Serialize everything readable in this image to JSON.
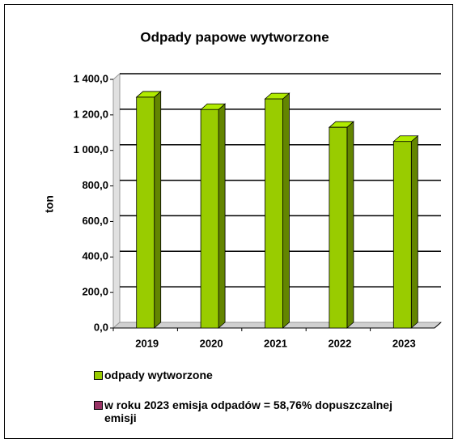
{
  "chart_data": {
    "type": "bar3d",
    "title": "Odpady papowe wytworzone",
    "y_label": "ton",
    "categories": [
      "2019",
      "2020",
      "2021",
      "2022",
      "2023"
    ],
    "series": [
      {
        "name": "odpady wytworzone",
        "color": "#99cc00",
        "values": [
          1300,
          1230,
          1290,
          1130,
          1050
        ]
      }
    ],
    "legend_note": {
      "text": "w roku 2023 emisja odpadów = 58,76% dopuszczalnej emisji",
      "color": "#993366"
    },
    "ylim": [
      0,
      1400
    ],
    "yticks": [
      {
        "value": 0,
        "label": "0,0"
      },
      {
        "value": 200,
        "label": "200,0"
      },
      {
        "value": 400,
        "label": "400,0"
      },
      {
        "value": 600,
        "label": "600,0"
      },
      {
        "value": 800,
        "label": "800,0"
      },
      {
        "value": 1000,
        "label": "1 000,0"
      },
      {
        "value": 1200,
        "label": "1 200,0"
      },
      {
        "value": 1400,
        "label": "1 400,0"
      }
    ],
    "grid": true
  }
}
